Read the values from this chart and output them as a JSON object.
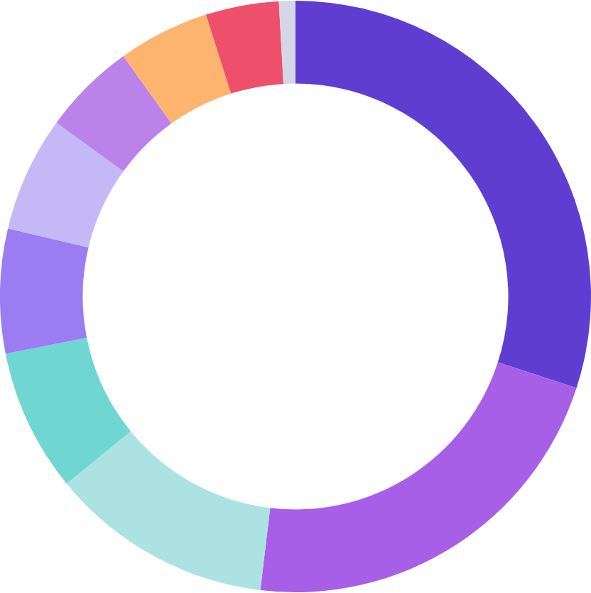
{
  "chart_data": {
    "type": "donut",
    "categories": [
      null,
      null,
      null,
      null,
      null,
      null,
      null,
      null,
      null,
      null
    ],
    "values": [
      30.0,
      21.9,
      12.2,
      7.8,
      6.8,
      6.3,
      5.1,
      5.0,
      4.0,
      0.9
    ],
    "colors": [
      "#5f3dd1",
      "#a65fe6",
      "#ade2e3",
      "#6fd6d1",
      "#9b7cf3",
      "#c5b8f7",
      "#bb82ea",
      "#fdb46e",
      "#ee4f6b",
      "#d5d6e6"
    ]
  }
}
